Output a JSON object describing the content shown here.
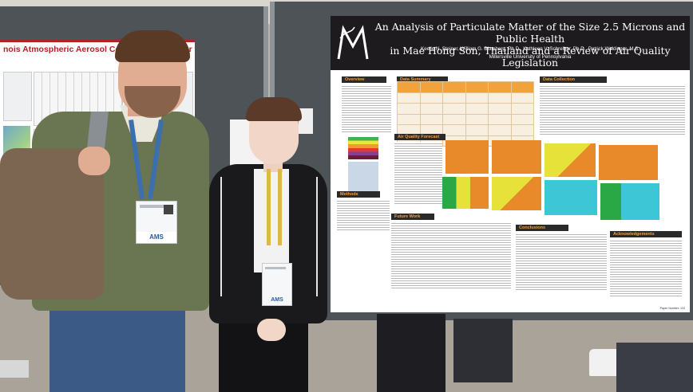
{
  "left_poster": {
    "title": "nois Atmospheric Aerosol Concentrations Over the S"
  },
  "poster": {
    "title_line1": "An Analysis of Particulate Matter of the Size 2.5 Microns and Public Health",
    "title_line2": "in Mae Hong Son, Thailand and a Review of Air Quality Legislation",
    "authors": "Keelie N. Steiner, William G. Blumberg, Ph.D., Kathleen V. Schreiber, Ph.D., Patrick Weidinger, M.S.",
    "affiliation": "Millersville University of Pennsylvania",
    "sections": {
      "overview": "Overview",
      "data_summary": "Data Summary",
      "data_collection": "Data Collection",
      "air_quality_forecast": "Air Quality Forecast",
      "methods": "Methods",
      "future_work": "Future Work",
      "conclusions": "Conclusions",
      "acknowledgements": "Acknowledgements"
    },
    "paper_number": "Paper Number: 124"
  },
  "badges": {
    "left": "AMS",
    "right": "AMS"
  },
  "colors": {
    "poster_header": "#1d1b1e",
    "section_header_text": "#f0a14a",
    "board": "#4d5356",
    "map_orange": "#e88a2a",
    "map_yellow": "#e6e23a",
    "map_cyan": "#3cc6d6",
    "map_green": "#2aa845"
  }
}
